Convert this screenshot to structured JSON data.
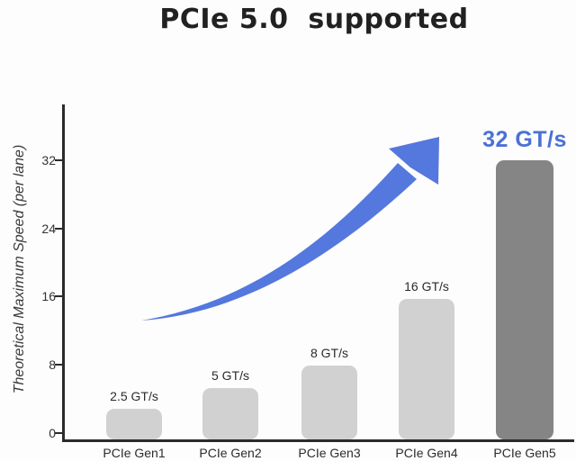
{
  "title": "PCIe 5.0  supported",
  "chart_data": {
    "type": "bar",
    "title": "PCIe 5.0  supported",
    "categories": [
      "PCIe Gen1",
      "PCIe Gen2",
      "PCIe Gen3",
      "PCIe Gen4",
      "PCIe Gen5"
    ],
    "values": [
      2.5,
      5,
      8,
      16,
      32
    ],
    "value_labels": [
      "2.5 GT/s",
      "5 GT/s",
      "8 GT/s",
      "16 GT/s",
      "32 GT/s"
    ],
    "unit": "GT/s",
    "xlabel": "",
    "ylabel": "Theoretical Maximum Speed (per lane)",
    "yticks": [
      0,
      8,
      16,
      24,
      32
    ],
    "ytick_labels_top_to_bottom": [
      "32",
      "24",
      "16",
      "8",
      "0"
    ],
    "ylim": [
      0,
      36
    ],
    "grid": false,
    "legend": false,
    "highlight": {
      "category": "PCIe Gen5",
      "label": "32 GT/s",
      "color": "#4b70d6"
    },
    "annotations": [
      {
        "name": "growth-arrow",
        "type": "curved-arrow",
        "color": "#5478dd",
        "description": "accelerating upward swoosh from above Gen1 toward the 32 GT/s label"
      }
    ],
    "colors": {
      "bar_default": "#d1d1d1",
      "bar_highlight_gen5": "#858585",
      "axis": "#2b2b2b",
      "text": "#2e2e2e",
      "accent_blue": "#4b70d6",
      "background": "#fdfdfd"
    }
  }
}
